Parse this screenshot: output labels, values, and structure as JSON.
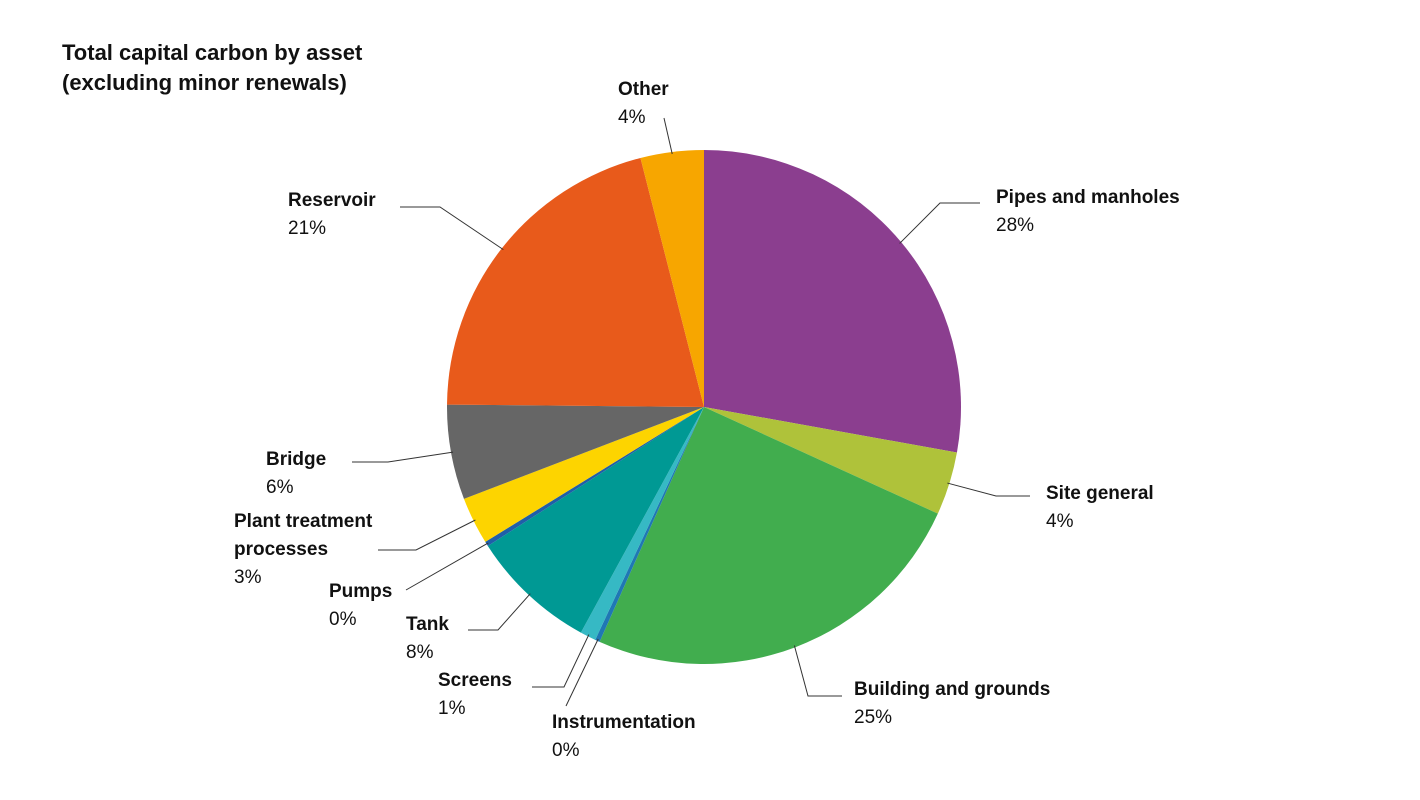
{
  "chart_data": {
    "type": "pie",
    "title_lines": [
      "Total capital carbon by asset",
      "(excluding minor renewals)"
    ],
    "slices": [
      {
        "name": "Pipes and manholes",
        "value": 28,
        "label": "28%",
        "color": "#8B3E8F"
      },
      {
        "name": "Site general",
        "value": 4,
        "label": "4%",
        "color": "#AFC23A"
      },
      {
        "name": "Building and grounds",
        "value": 25,
        "label": "25%",
        "color": "#41AD4E"
      },
      {
        "name": "Instrumentation",
        "value": 0.3,
        "label": "0%",
        "color": "#1F78B4"
      },
      {
        "name": "Screens",
        "value": 1,
        "label": "1%",
        "color": "#36B9C4"
      },
      {
        "name": "Tank",
        "value": 8,
        "label": "8%",
        "color": "#009994"
      },
      {
        "name": "Pumps",
        "value": 0.3,
        "label": "0%",
        "color": "#1F5FA8"
      },
      {
        "name": "Plant treatment processes",
        "value": 3,
        "label": "3%",
        "color": "#FDD400"
      },
      {
        "name": "Bridge",
        "value": 6,
        "label": "6%",
        "color": "#666666"
      },
      {
        "name": "Reservoir",
        "value": 21,
        "label": "21%",
        "color": "#E85A1B"
      },
      {
        "name": "Other",
        "value": 4,
        "label": "4%",
        "color": "#F7A600"
      }
    ]
  }
}
